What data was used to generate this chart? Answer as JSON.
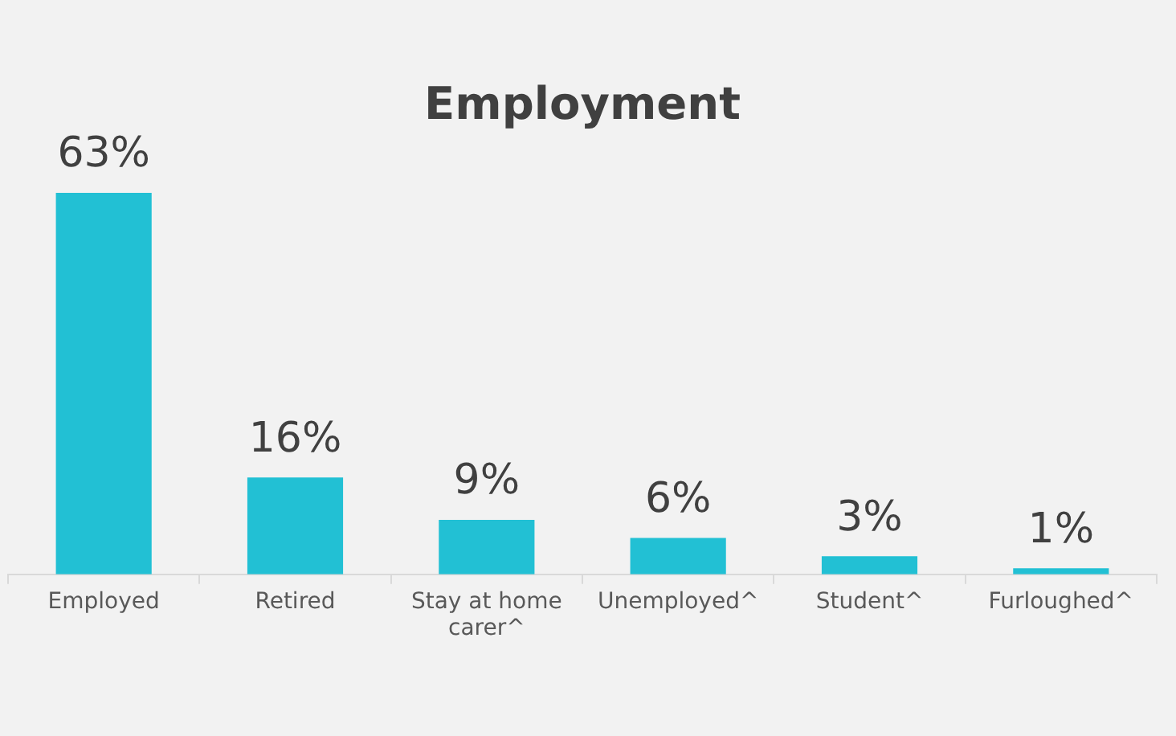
{
  "chart_data": {
    "type": "bar",
    "title": "Employment",
    "categories": [
      "Employed",
      "Retired",
      "Stay at home carer^",
      "Unemployed^",
      "Student^",
      "Furloughed^"
    ],
    "values": [
      63,
      16,
      9,
      6,
      3,
      1
    ],
    "value_labels": [
      "63%",
      "16%",
      "9%",
      "6%",
      "3%",
      "1%"
    ],
    "color": "#22c0d4",
    "grid": false,
    "legend": false
  }
}
